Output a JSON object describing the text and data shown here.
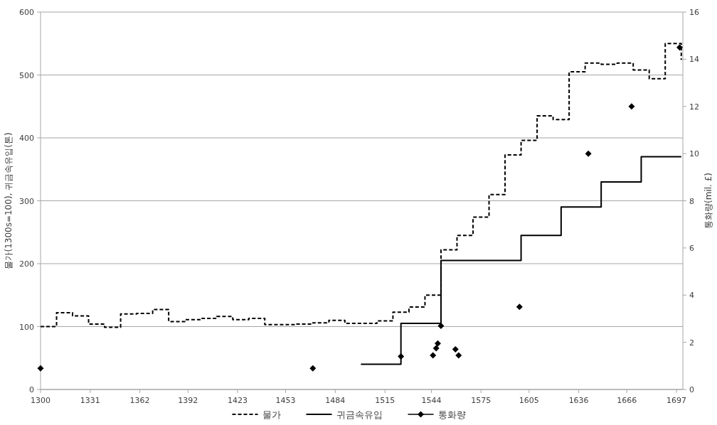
{
  "chart_data": {
    "type": "step",
    "xlim": [
      1300,
      1701
    ],
    "xticks": [
      1300,
      1331,
      1362,
      1392,
      1423,
      1453,
      1484,
      1515,
      1544,
      1575,
      1605,
      1636,
      1666,
      1697
    ],
    "ylim": [
      0,
      600
    ],
    "yticks": [
      0,
      100,
      200,
      300,
      400,
      500,
      600
    ],
    "y2lim": [
      0,
      16
    ],
    "y2ticks": [
      0,
      2,
      4,
      6,
      8,
      10,
      12,
      14,
      16
    ],
    "ylabel": "물가(1300s=100), 귀금속유입(톤)",
    "y2label": "통화량(mil. £)",
    "grid": "y",
    "legend": "bottom",
    "series": [
      {
        "name": "물가",
        "line_style": "dashed",
        "color": "#000000",
        "x": [
          1300,
          1310,
          1320,
          1330,
          1340,
          1350,
          1360,
          1370,
          1380,
          1390,
          1400,
          1410,
          1420,
          1430,
          1440,
          1450,
          1460,
          1470,
          1480,
          1490,
          1500,
          1510,
          1520,
          1530,
          1540,
          1550,
          1560,
          1570,
          1580,
          1590,
          1600,
          1610,
          1620,
          1630,
          1640,
          1650,
          1660,
          1670,
          1680,
          1690,
          1700
        ],
        "values": [
          100,
          122,
          117,
          104,
          99,
          120,
          121,
          127,
          108,
          111,
          113,
          116,
          111,
          113,
          103,
          103,
          104,
          106,
          110,
          105,
          105,
          109,
          123,
          131,
          150,
          222,
          245,
          274,
          310,
          373,
          396,
          435,
          429,
          505,
          519,
          517,
          519,
          508,
          494,
          550,
          524
        ]
      },
      {
        "name": "귀금속유입",
        "line_style": "solid",
        "color": "#000000",
        "x": [
          1500,
          1525,
          1550,
          1600,
          1625,
          1650,
          1675,
          1700
        ],
        "values": [
          40,
          105,
          205,
          245,
          290,
          330,
          370,
          370
        ]
      },
      {
        "name": "통화량",
        "type": "scatter",
        "axis": "y2",
        "marker": "diamond",
        "color": "#000000",
        "x": [
          1300,
          1470,
          1525,
          1545,
          1547,
          1548,
          1550,
          1559,
          1561,
          1599,
          1642,
          1669,
          1699
        ],
        "values": [
          0.9,
          0.9,
          1.4,
          1.45,
          1.75,
          1.95,
          2.7,
          1.7,
          1.45,
          3.5,
          10,
          12,
          14.5
        ]
      }
    ]
  }
}
